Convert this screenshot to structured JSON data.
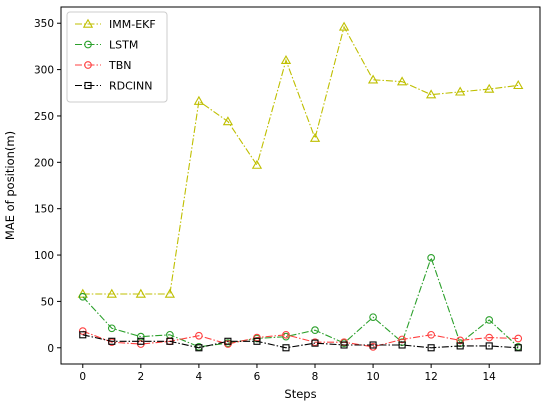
{
  "chart_data": {
    "type": "line",
    "title": "",
    "xlabel": "Steps",
    "ylabel": "MAE of position(m)",
    "xlim": [
      -0.75,
      15.75
    ],
    "ylim": [
      -17.5,
      367.5
    ],
    "xticks": [
      0,
      2,
      4,
      6,
      8,
      10,
      12,
      14
    ],
    "yticks": [
      0,
      50,
      100,
      150,
      200,
      250,
      300,
      350
    ],
    "grid": false,
    "legend_position": "top-left",
    "x": [
      0,
      1,
      2,
      3,
      4,
      5,
      6,
      7,
      8,
      9,
      10,
      11,
      12,
      13,
      14,
      15
    ],
    "series": [
      {
        "name": "IMM-EKF",
        "color": "#bfbf00",
        "marker": "triangle",
        "linestyle": "dashdot",
        "values": [
          58,
          58,
          58,
          58,
          266,
          244,
          197,
          310,
          226,
          346,
          289,
          287,
          273,
          276,
          279,
          283
        ]
      },
      {
        "name": "LSTM",
        "color": "#2ca02c",
        "marker": "circle",
        "linestyle": "dashdot",
        "values": [
          55,
          21,
          12,
          14,
          1,
          5,
          10,
          12,
          19,
          5,
          33,
          6,
          97,
          5,
          30,
          1
        ]
      },
      {
        "name": "TBN",
        "color": "#ff4040",
        "marker": "circle",
        "linestyle": "dashdot",
        "values": [
          18,
          6,
          4,
          7,
          13,
          4,
          11,
          14,
          6,
          6,
          1,
          9,
          14,
          8,
          11,
          10
        ]
      },
      {
        "name": "RDCINN",
        "color": "#000000",
        "marker": "square",
        "linestyle": "dashdot",
        "values": [
          14,
          7,
          7,
          7,
          0,
          7,
          7,
          0,
          5,
          3,
          3,
          3,
          0,
          2,
          2,
          0
        ]
      }
    ]
  }
}
